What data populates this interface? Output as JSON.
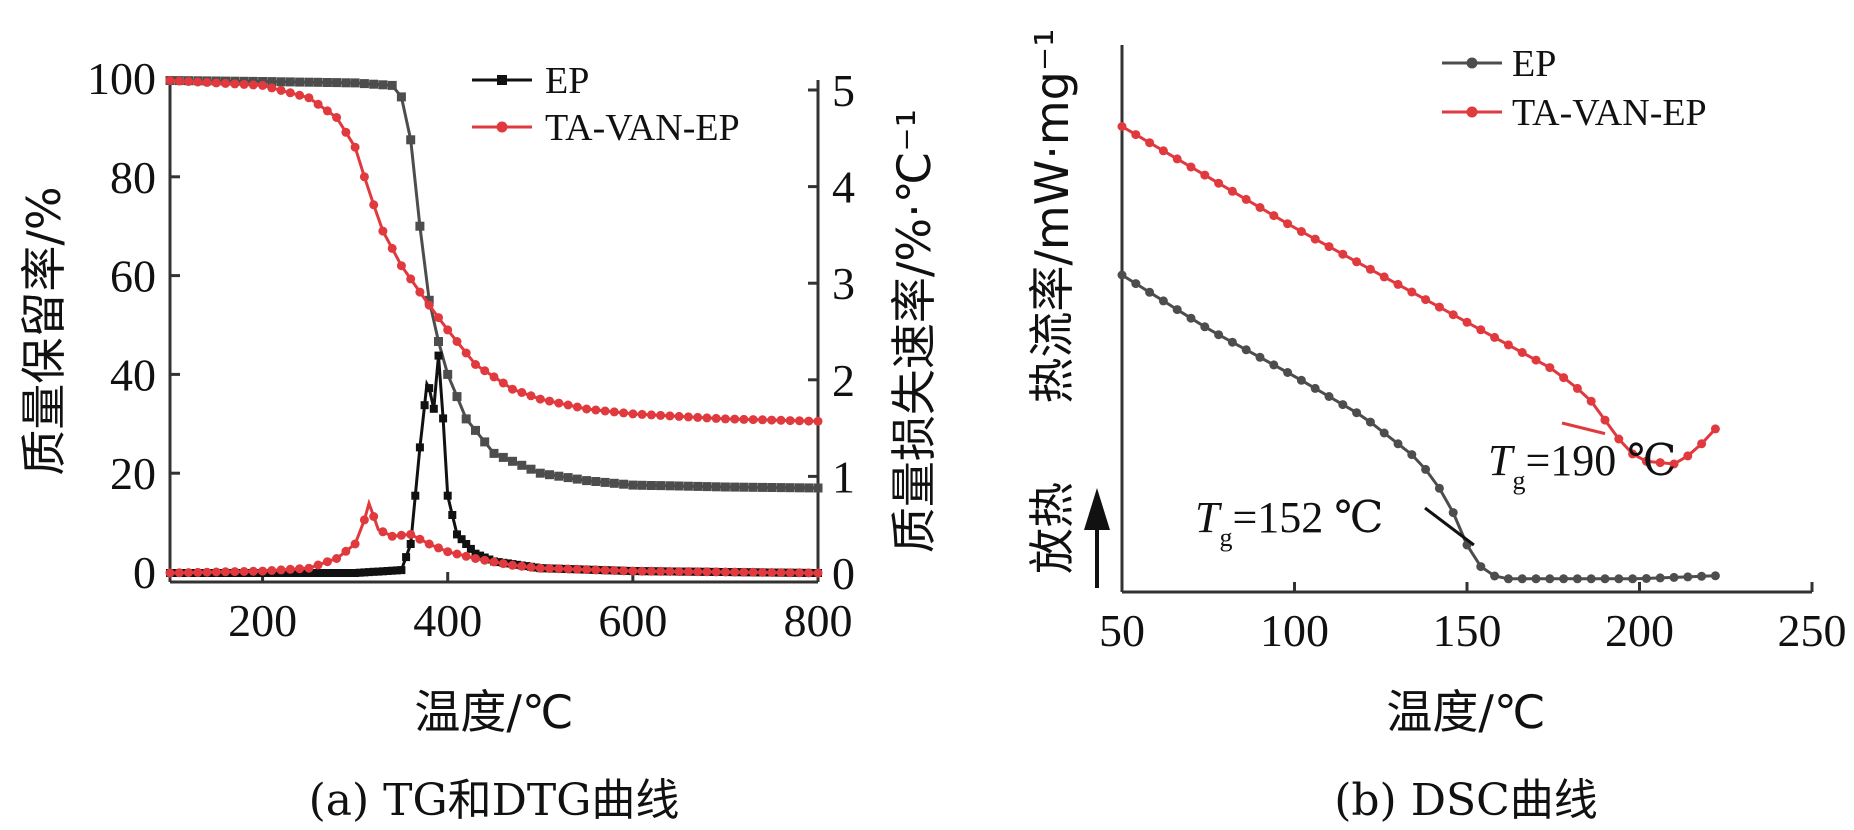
{
  "chart_data": [
    {
      "type": "line",
      "caption": "(a) TG和DTG曲线",
      "xlabel": "温度/℃",
      "ylabel": "质量保留率/%",
      "y2label": "质量损失速率/%·℃⁻¹",
      "xlim": [
        100,
        800
      ],
      "ylim": [
        0,
        100
      ],
      "y2lim": [
        0,
        5
      ],
      "xticks": [
        "200",
        "400",
        "600",
        "800"
      ],
      "yticks": [
        "0",
        "20",
        "40",
        "60",
        "80",
        "100"
      ],
      "y2ticks": [
        "0",
        "1",
        "2",
        "3",
        "4",
        "5"
      ],
      "legend": {
        "position": "top-center",
        "entries": [
          "EP",
          "TA-VAN-EP"
        ]
      },
      "colors": {
        "EP": "#4d4d4d",
        "TA-VAN-EP": "#e0393e"
      },
      "series": [
        {
          "name": "EP",
          "kind": "TG",
          "axis": "left",
          "x": [
            100,
            200,
            300,
            340,
            355,
            365,
            375,
            385,
            400,
            420,
            450,
            500,
            550,
            600,
            700,
            800
          ],
          "y": [
            99.5,
            99.3,
            99.0,
            98.5,
            95,
            80,
            60,
            50,
            40,
            31,
            24,
            20,
            18.5,
            17.6,
            17.2,
            17.0
          ]
        },
        {
          "name": "TA-VAN-EP",
          "kind": "TG",
          "axis": "left",
          "x": [
            100,
            200,
            250,
            280,
            300,
            315,
            330,
            350,
            380,
            400,
            430,
            470,
            500,
            550,
            600,
            700,
            800
          ],
          "y": [
            99.5,
            98.5,
            96,
            92,
            86,
            77,
            69,
            62,
            54,
            49,
            42,
            37,
            35,
            33,
            32,
            31,
            30.5
          ]
        },
        {
          "name": "EP",
          "kind": "DTG",
          "axis": "right",
          "x": [
            100,
            200,
            300,
            350,
            360,
            370,
            378,
            385,
            390,
            395,
            400,
            410,
            430,
            450,
            500,
            600,
            800
          ],
          "y": [
            0,
            0,
            0,
            0.03,
            0.3,
            1.3,
            2.0,
            1.7,
            2.25,
            1.6,
            0.8,
            0.4,
            0.2,
            0.12,
            0.05,
            0.02,
            0.0
          ]
        },
        {
          "name": "TA-VAN-EP",
          "kind": "DTG",
          "axis": "right",
          "x": [
            100,
            200,
            250,
            280,
            300,
            310,
            315,
            325,
            340,
            360,
            380,
            400,
            430,
            470,
            500,
            600,
            800
          ],
          "y": [
            0,
            0.02,
            0.05,
            0.15,
            0.3,
            0.55,
            0.72,
            0.45,
            0.38,
            0.4,
            0.3,
            0.22,
            0.15,
            0.08,
            0.05,
            0.02,
            0.0
          ]
        }
      ]
    },
    {
      "type": "line",
      "caption": "(b) DSC曲线",
      "xlabel": "温度/℃",
      "ylabel": "热流率/mW·mg⁻¹",
      "direction_label": "放热",
      "xlim": [
        50,
        250
      ],
      "ylim": [
        0,
        10
      ],
      "xticks": [
        "50",
        "100",
        "150",
        "200",
        "250"
      ],
      "legend": {
        "position": "top-center",
        "entries": [
          "EP",
          "TA-VAN-EP"
        ]
      },
      "colors": {
        "EP": "#4d4d4d",
        "TA-VAN-EP": "#e0393e"
      },
      "annotations": [
        {
          "series": "EP",
          "x": 152,
          "y": 2.0,
          "text_prefix": "T",
          "text_sub": "g",
          "text_value": "=152 ℃"
        },
        {
          "series": "TA-VAN-EP",
          "x": 190,
          "y": 3.65,
          "text_prefix": "T",
          "text_sub": "g",
          "text_value": "=190 ℃"
        }
      ],
      "series": [
        {
          "name": "EP",
          "x": [
            50,
            75,
            100,
            120,
            135,
            140,
            145,
            150,
            155,
            160,
            180,
            200,
            225
          ],
          "y": [
            6.0,
            5.2,
            4.5,
            3.9,
            3.3,
            3.0,
            2.6,
            2.0,
            1.6,
            1.5,
            1.5,
            1.5,
            1.55
          ]
        },
        {
          "name": "TA-VAN-EP",
          "x": [
            50,
            75,
            100,
            125,
            150,
            175,
            185,
            195,
            200,
            210,
            215,
            220,
            225
          ],
          "y": [
            8.2,
            7.45,
            6.7,
            6.0,
            5.3,
            4.6,
            4.2,
            3.5,
            3.25,
            3.2,
            3.35,
            3.6,
            3.9
          ]
        }
      ]
    }
  ]
}
